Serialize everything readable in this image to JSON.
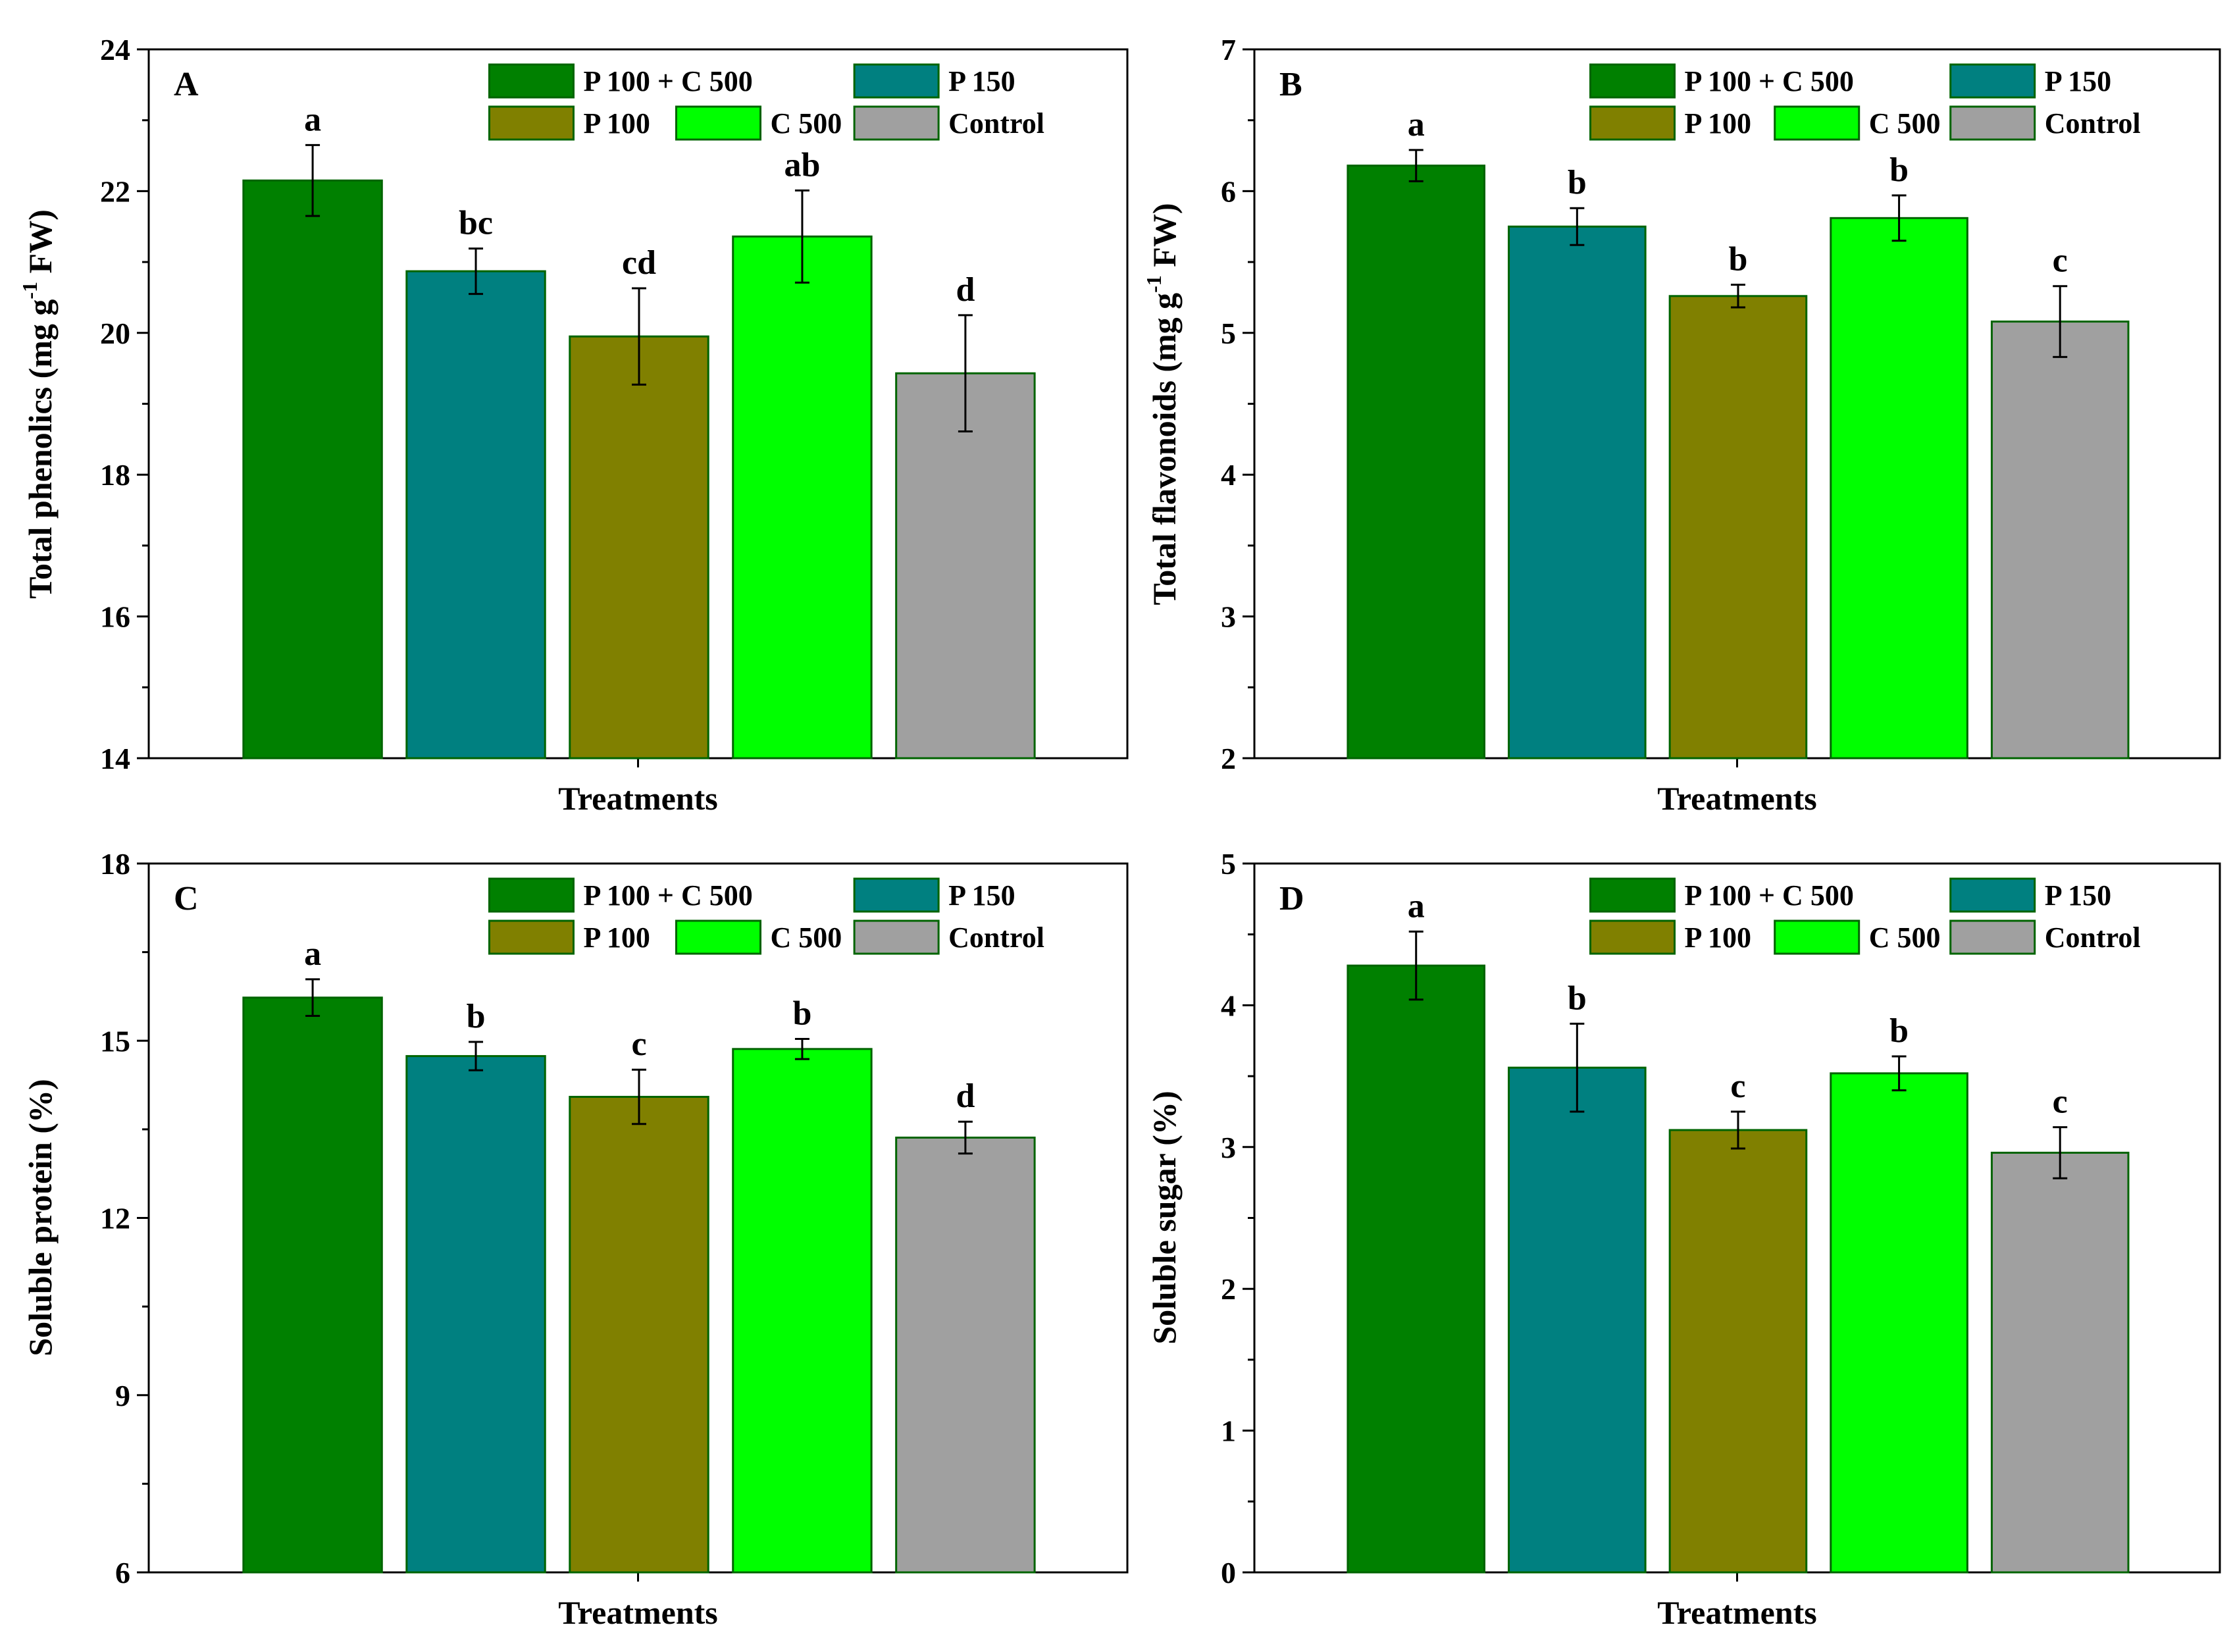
{
  "figure": {
    "legend_entries": [
      {
        "label": "P 100 + C 500",
        "color": "#008000"
      },
      {
        "label": "P 150",
        "color": "#008080"
      },
      {
        "label": "P 100",
        "color": "#808000"
      },
      {
        "label": "C 500",
        "color": "#00FF00"
      },
      {
        "label": "Control",
        "color": "#A0A0A0"
      }
    ],
    "edge_color": "#006400",
    "error_bar_color": "#000000"
  },
  "chart_data": [
    {
      "panel": "A",
      "type": "bar",
      "categories": [
        "P 100 + C 500",
        "P 150",
        "P 100",
        "C 500",
        "Control"
      ],
      "values": [
        22.15,
        20.87,
        19.95,
        21.36,
        19.43
      ],
      "errors": [
        0.5,
        0.32,
        0.68,
        0.65,
        0.82
      ],
      "significance": [
        "a",
        "bc",
        "cd",
        "ab",
        "d"
      ],
      "xlabel": "Treatments",
      "ylabel": "Total phenolics (mg g",
      "ylabel_sup": "-1",
      "ylabel_end": " FW)",
      "ylim": [
        14,
        24
      ],
      "yticks": [
        14,
        16,
        18,
        20,
        22,
        24
      ],
      "ytick_labels": [
        "14",
        "16",
        "18",
        "20",
        "22",
        "24"
      ],
      "minor_step": 1
    },
    {
      "panel": "B",
      "type": "bar",
      "categories": [
        "P 100 + C 500",
        "P 150",
        "P 100",
        "C 500",
        "Control"
      ],
      "values": [
        6.18,
        5.75,
        5.26,
        5.81,
        5.08
      ],
      "errors": [
        0.11,
        0.13,
        0.08,
        0.16,
        0.25
      ],
      "significance": [
        "a",
        "b",
        "b",
        "b",
        "c"
      ],
      "xlabel": "Treatments",
      "ylabel": "Total flavonoids (mg g",
      "ylabel_sup": "-1",
      "ylabel_end": " FW)",
      "ylim": [
        2,
        7
      ],
      "yticks": [
        2,
        3,
        4,
        5,
        6,
        7
      ],
      "ytick_labels": [
        "2",
        "3",
        "4",
        "5",
        "6",
        "7"
      ],
      "minor_step": 0.5
    },
    {
      "panel": "C",
      "type": "bar",
      "categories": [
        "P 100 + C 500",
        "P 150",
        "P 100",
        "C 500",
        "Control"
      ],
      "values": [
        15.73,
        14.74,
        14.05,
        14.86,
        13.36
      ],
      "errors": [
        0.31,
        0.24,
        0.46,
        0.17,
        0.27
      ],
      "significance": [
        "a",
        "b",
        "c",
        "b",
        "d"
      ],
      "xlabel": "Treatments",
      "ylabel": "Soluble protein (%)",
      "ylabel_sup": "",
      "ylabel_end": "",
      "ylim": [
        6,
        18
      ],
      "yticks": [
        6,
        9,
        12,
        15,
        18
      ],
      "ytick_labels": [
        "6",
        "9",
        "12",
        "15",
        "18"
      ],
      "minor_step": 1.5
    },
    {
      "panel": "D",
      "type": "bar",
      "categories": [
        "P 100 + C 500",
        "P 150",
        "P 100",
        "C 500",
        "Control"
      ],
      "values": [
        4.28,
        3.56,
        3.12,
        3.52,
        2.96
      ],
      "errors": [
        0.24,
        0.31,
        0.13,
        0.12,
        0.18
      ],
      "significance": [
        "a",
        "b",
        "c",
        "b",
        "c"
      ],
      "xlabel": "Treatments",
      "ylabel": "Soluble sugar (%)",
      "ylabel_sup": "",
      "ylabel_end": "",
      "ylim": [
        0,
        5
      ],
      "yticks": [
        0,
        1,
        2,
        3,
        4,
        5
      ],
      "ytick_labels": [
        "0",
        "1",
        "2",
        "3",
        "4",
        "5"
      ],
      "minor_step": 0.5
    }
  ]
}
